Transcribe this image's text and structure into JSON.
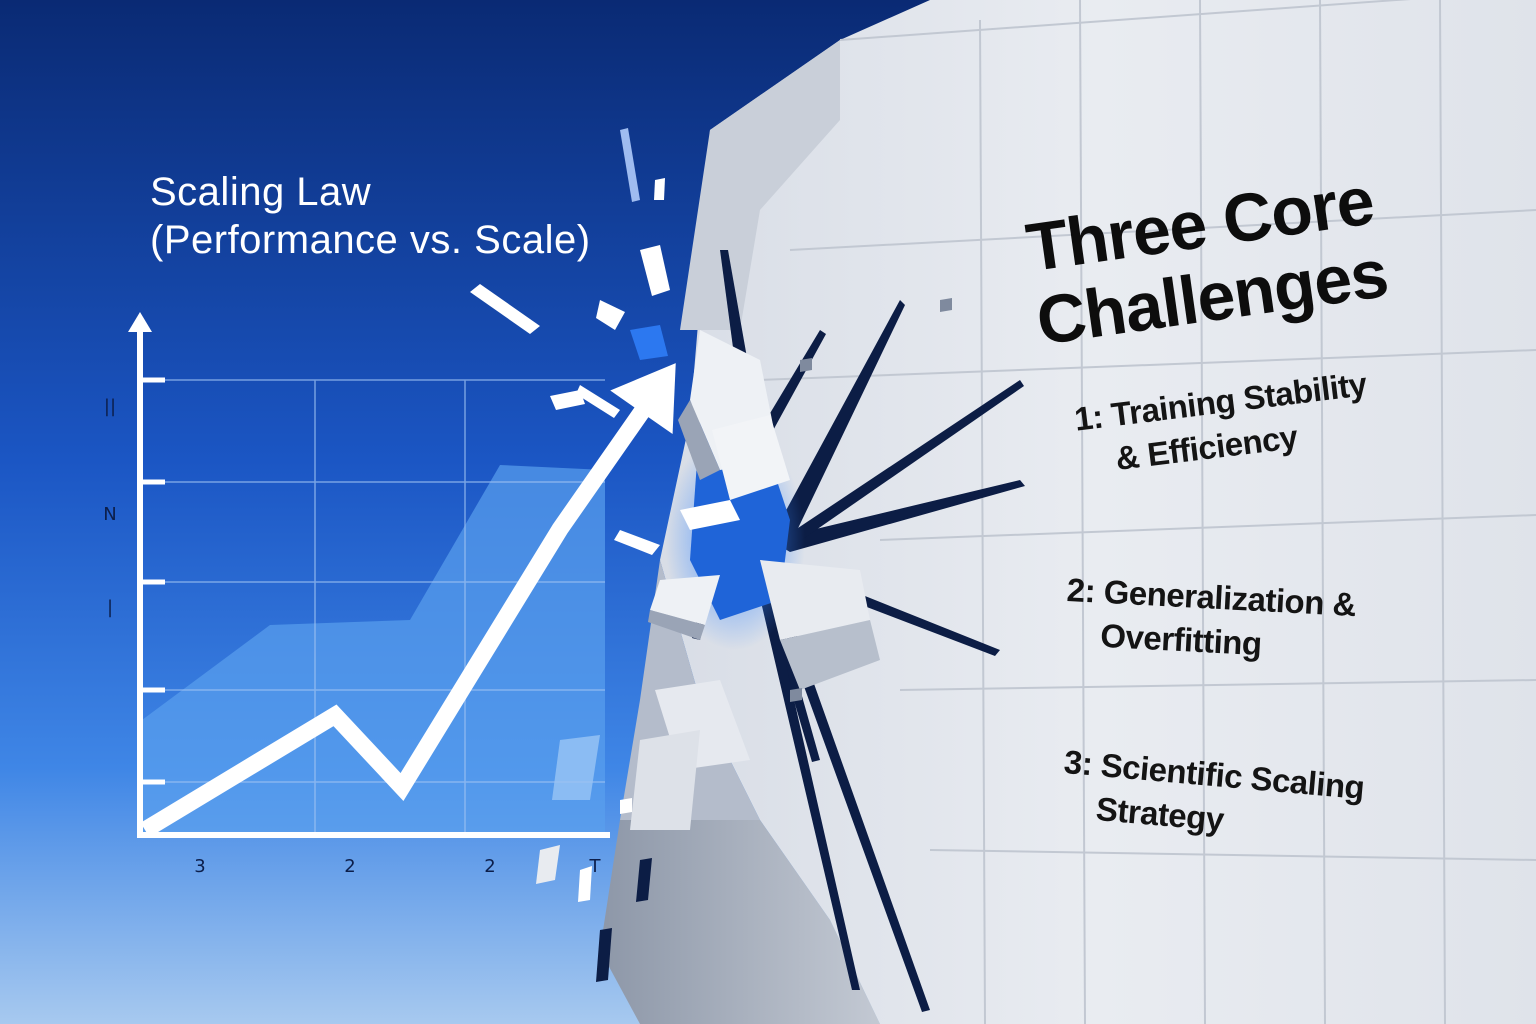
{
  "chart_title": {
    "line1": "Scaling Law",
    "line2": "(Performance vs. Scale)"
  },
  "chart_data": {
    "type": "line",
    "title": "Scaling Law (Performance vs. Scale)",
    "x_tick_labels": [
      "3",
      "2",
      "2",
      "T"
    ],
    "y_tick_labels": [
      "||",
      "N",
      "|"
    ],
    "series": [
      {
        "values": [
          0,
          1.6,
          0.6,
          4.2,
          6.0
        ]
      }
    ],
    "grid": true,
    "legend": "none"
  },
  "wall": {
    "title_line1": "Three Core",
    "title_line2": "Challenges",
    "challenges": [
      {
        "line1": "1: Training Stability",
        "line2": "& Efficiency"
      },
      {
        "line1": "2: Generalization &",
        "line2": "Overfitting"
      },
      {
        "line1": "3: Scientific Scaling",
        "line2": "Strategy"
      }
    ]
  },
  "colors": {
    "sky_top": "#0b2d7a",
    "sky_mid": "#1f5fd0",
    "sky_bottom": "#9cc4f0",
    "wall": "#e6e9ef",
    "wall_shadow": "#a9b1bf",
    "crack": "#0c1d45",
    "arrow": "#ffffff"
  }
}
